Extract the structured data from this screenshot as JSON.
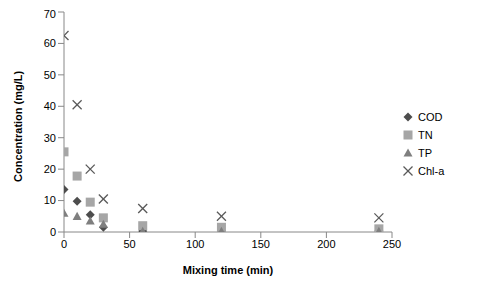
{
  "chart_data": {
    "type": "scatter",
    "x_label": "Mixing time (min)",
    "y_label": "Concentration (mg/L)",
    "xlim": [
      0,
      250
    ],
    "xticks": [
      0,
      50,
      100,
      150,
      200,
      250
    ],
    "ylim": [
      0,
      70
    ],
    "yticks": [
      0,
      10,
      20,
      30,
      40,
      50,
      60,
      70
    ],
    "grid": false,
    "legend": "right",
    "x": [
      0,
      10,
      20,
      30,
      60,
      120,
      240
    ],
    "series": [
      {
        "name": "COD",
        "color": "#4d4d4d",
        "marker": "diamond",
        "values": [
          13.5,
          9.8,
          5.5,
          1.5,
          0.3,
          0.3,
          0.3
        ]
      },
      {
        "name": "TN",
        "color": "#a6a6a6",
        "marker": "square",
        "values": [
          25.5,
          17.8,
          9.5,
          4.5,
          2,
          1.5,
          1
        ]
      },
      {
        "name": "TP",
        "color": "#7f7f7f",
        "marker": "triangle",
        "values": [
          6,
          5,
          3.5,
          2.5,
          0.2,
          0.2,
          0.2
        ]
      },
      {
        "name": "Chl-a",
        "color": "#595959",
        "marker": "x",
        "values": [
          62.5,
          40.5,
          20,
          10.5,
          7.5,
          5,
          4.5
        ]
      }
    ]
  }
}
